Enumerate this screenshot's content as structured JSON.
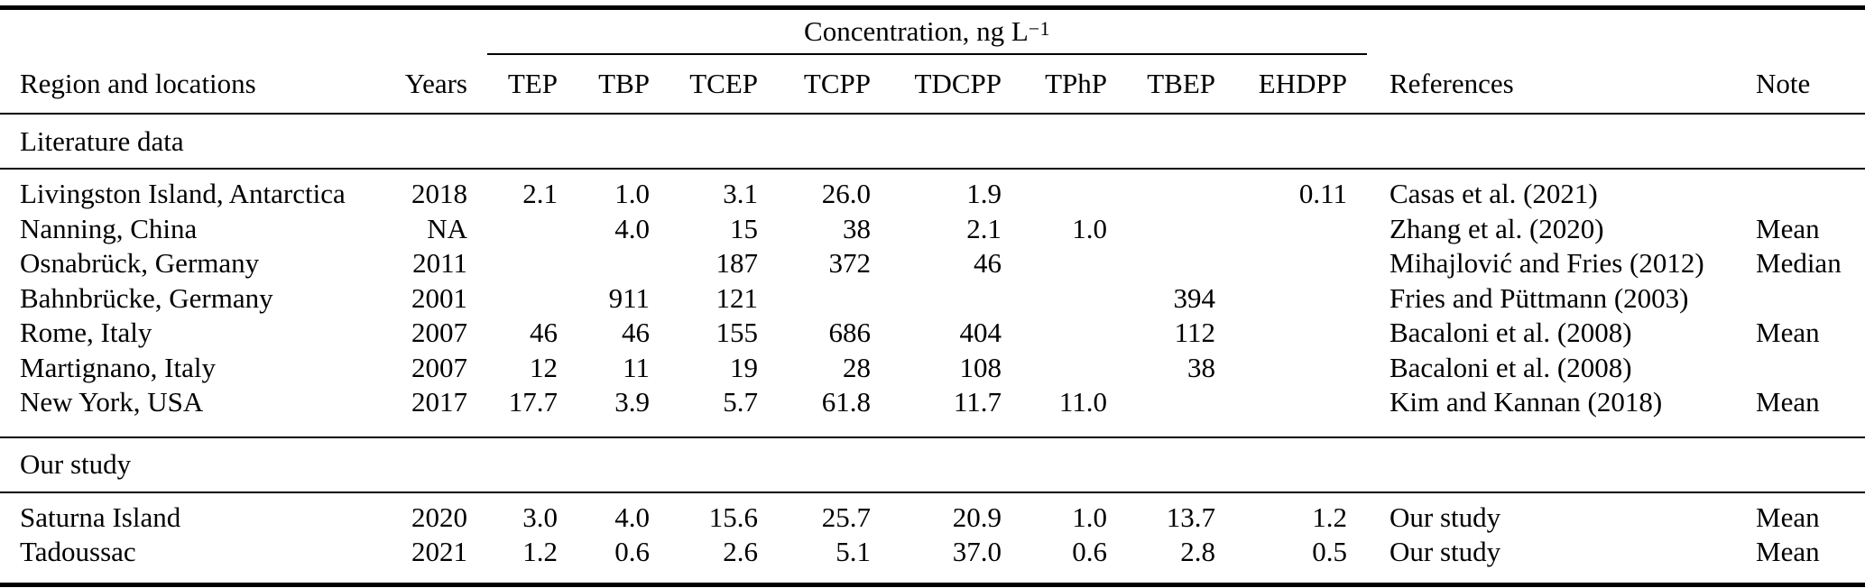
{
  "table": {
    "spanner": {
      "text": "Concentration, ng L",
      "superscript": "−1"
    },
    "columns": [
      {
        "id": "region",
        "label": "Region and locations"
      },
      {
        "id": "years",
        "label": "Years"
      },
      {
        "id": "tep",
        "label": "TEP"
      },
      {
        "id": "tbp",
        "label": "TBP"
      },
      {
        "id": "tcep",
        "label": "TCEP"
      },
      {
        "id": "tcpp",
        "label": "TCPP"
      },
      {
        "id": "tdcpp",
        "label": "TDCPP"
      },
      {
        "id": "tphp",
        "label": "TPhP"
      },
      {
        "id": "tbep",
        "label": "TBEP"
      },
      {
        "id": "ehdpp",
        "label": "EHDPP"
      },
      {
        "id": "reference",
        "label": "References"
      },
      {
        "id": "note",
        "label": "Note"
      }
    ],
    "sections": [
      {
        "label": "Literature data",
        "rows": [
          {
            "region": "Livingston Island, Antarctica",
            "years": "2018",
            "tep": "2.1",
            "tbp": "1.0",
            "tcep": "3.1",
            "tcpp": "26.0",
            "tdcpp": "1.9",
            "tphp": "",
            "tbep": "",
            "ehdpp": "0.11",
            "reference": "Casas et al. (2021)",
            "note": ""
          },
          {
            "region": "Nanning, China",
            "years": "NA",
            "tep": "",
            "tbp": "4.0",
            "tcep": "15",
            "tcpp": "38",
            "tdcpp": "2.1",
            "tphp": "1.0",
            "tbep": "",
            "ehdpp": "",
            "reference": "Zhang et al. (2020)",
            "note": "Mean"
          },
          {
            "region": "Osnabrück, Germany",
            "years": "2011",
            "tep": "",
            "tbp": "",
            "tcep": "187",
            "tcpp": "372",
            "tdcpp": "46",
            "tphp": "",
            "tbep": "",
            "ehdpp": "",
            "reference": "Mihajlović and Fries (2012)",
            "note": "Median"
          },
          {
            "region": "Bahnbrücke, Germany",
            "years": "2001",
            "tep": "",
            "tbp": "911",
            "tcep": "121",
            "tcpp": "",
            "tdcpp": "",
            "tphp": "",
            "tbep": "394",
            "ehdpp": "",
            "reference": "Fries and Püttmann (2003)",
            "note": ""
          },
          {
            "region": "Rome, Italy",
            "years": "2007",
            "tep": "46",
            "tbp": "46",
            "tcep": "155",
            "tcpp": "686",
            "tdcpp": "404",
            "tphp": "",
            "tbep": "112",
            "ehdpp": "",
            "reference": "Bacaloni et al. (2008)",
            "note": "Mean"
          },
          {
            "region": "Martignano, Italy",
            "years": "2007",
            "tep": "12",
            "tbp": "11",
            "tcep": "19",
            "tcpp": "28",
            "tdcpp": "108",
            "tphp": "",
            "tbep": "38",
            "ehdpp": "",
            "reference": "Bacaloni et al. (2008)",
            "note": ""
          },
          {
            "region": "New York, USA",
            "years": "2017",
            "tep": "17.7",
            "tbp": "3.9",
            "tcep": "5.7",
            "tcpp": "61.8",
            "tdcpp": "11.7",
            "tphp": "11.0",
            "tbep": "",
            "ehdpp": "",
            "reference": "Kim and Kannan (2018)",
            "note": "Mean"
          }
        ]
      },
      {
        "label": "Our study",
        "rows": [
          {
            "region": "Saturna Island",
            "years": "2020",
            "tep": "3.0",
            "tbp": "4.0",
            "tcep": "15.6",
            "tcpp": "25.7",
            "tdcpp": "20.9",
            "tphp": "1.0",
            "tbep": "13.7",
            "ehdpp": "1.2",
            "reference": "Our study",
            "note": "Mean"
          },
          {
            "region": "Tadoussac",
            "years": "2021",
            "tep": "1.2",
            "tbp": "0.6",
            "tcep": "2.6",
            "tcpp": "5.1",
            "tdcpp": "37.0",
            "tphp": "0.6",
            "tbep": "2.8",
            "ehdpp": "0.5",
            "reference": "Our study",
            "note": "Mean"
          }
        ]
      }
    ]
  }
}
